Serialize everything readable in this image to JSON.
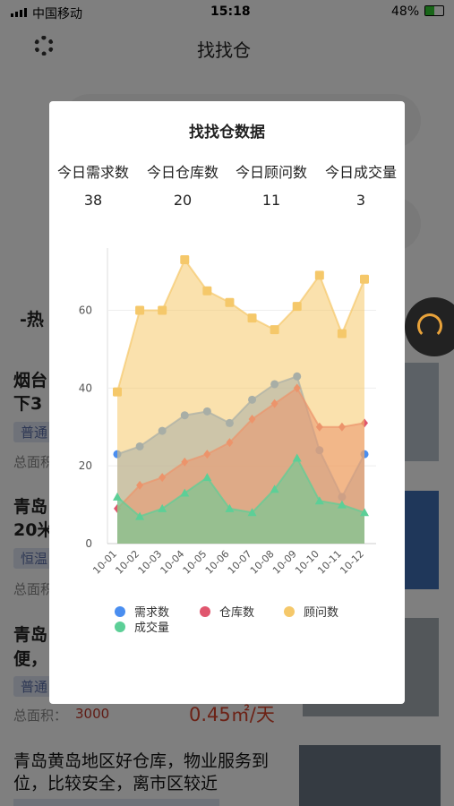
{
  "status_bar": {
    "carrier": "中国移动",
    "time": "15:18",
    "battery": "48%"
  },
  "header": {
    "title": "找找仓"
  },
  "background": {
    "section": "-热",
    "listings": [
      {
        "title_lines": [
          "烟台",
          "下3"
        ],
        "tag": "普通",
        "area_label": "总面积"
      },
      {
        "title_lines": [
          "青岛",
          "20米"
        ],
        "tag": "恒温",
        "area_label": "总面积"
      },
      {
        "title_lines": [
          "青岛",
          "便，"
        ],
        "tag": "普通",
        "area_label": "总面积：",
        "area_value": "3000",
        "price": "0.45㎡/天"
      },
      {
        "title_lines": [
          "青岛黄岛地区好仓库，物业服务到",
          "位，比较安全，离市区较近"
        ]
      }
    ]
  },
  "modal": {
    "title": "找找仓数据",
    "stats": [
      {
        "label": "今日需求数",
        "value": 38
      },
      {
        "label": "今日仓库数",
        "value": 20
      },
      {
        "label": "今日顾问数",
        "value": 11
      },
      {
        "label": "今日成交量",
        "value": 3
      }
    ]
  },
  "chart_data": {
    "type": "area",
    "categories": [
      "10-01",
      "10-02",
      "10-03",
      "10-04",
      "10-05",
      "10-06",
      "10-07",
      "10-08",
      "10-09",
      "10-10",
      "10-11",
      "10-12"
    ],
    "series": [
      {
        "name": "需求数",
        "color": "#4a8ef0",
        "values": [
          23,
          25,
          29,
          33,
          34,
          31,
          37,
          41,
          43,
          24,
          12,
          23
        ]
      },
      {
        "name": "仓库数",
        "color": "#e0566e",
        "values": [
          9,
          15,
          17,
          21,
          23,
          26,
          32,
          36,
          40,
          30,
          30,
          31
        ]
      },
      {
        "name": "顾问数",
        "color": "#f5c86a",
        "values": [
          39,
          60,
          60,
          73,
          65,
          62,
          58,
          55,
          61,
          69,
          54,
          68
        ]
      },
      {
        "name": "成交量",
        "color": "#5ccf97",
        "values": [
          12,
          7,
          9,
          13,
          17,
          9,
          8,
          14,
          22,
          11,
          10,
          8
        ]
      }
    ],
    "ylim": [
      0,
      76
    ],
    "yticks": [
      0,
      20,
      40,
      60
    ],
    "grid": true,
    "legend": "bottom"
  }
}
